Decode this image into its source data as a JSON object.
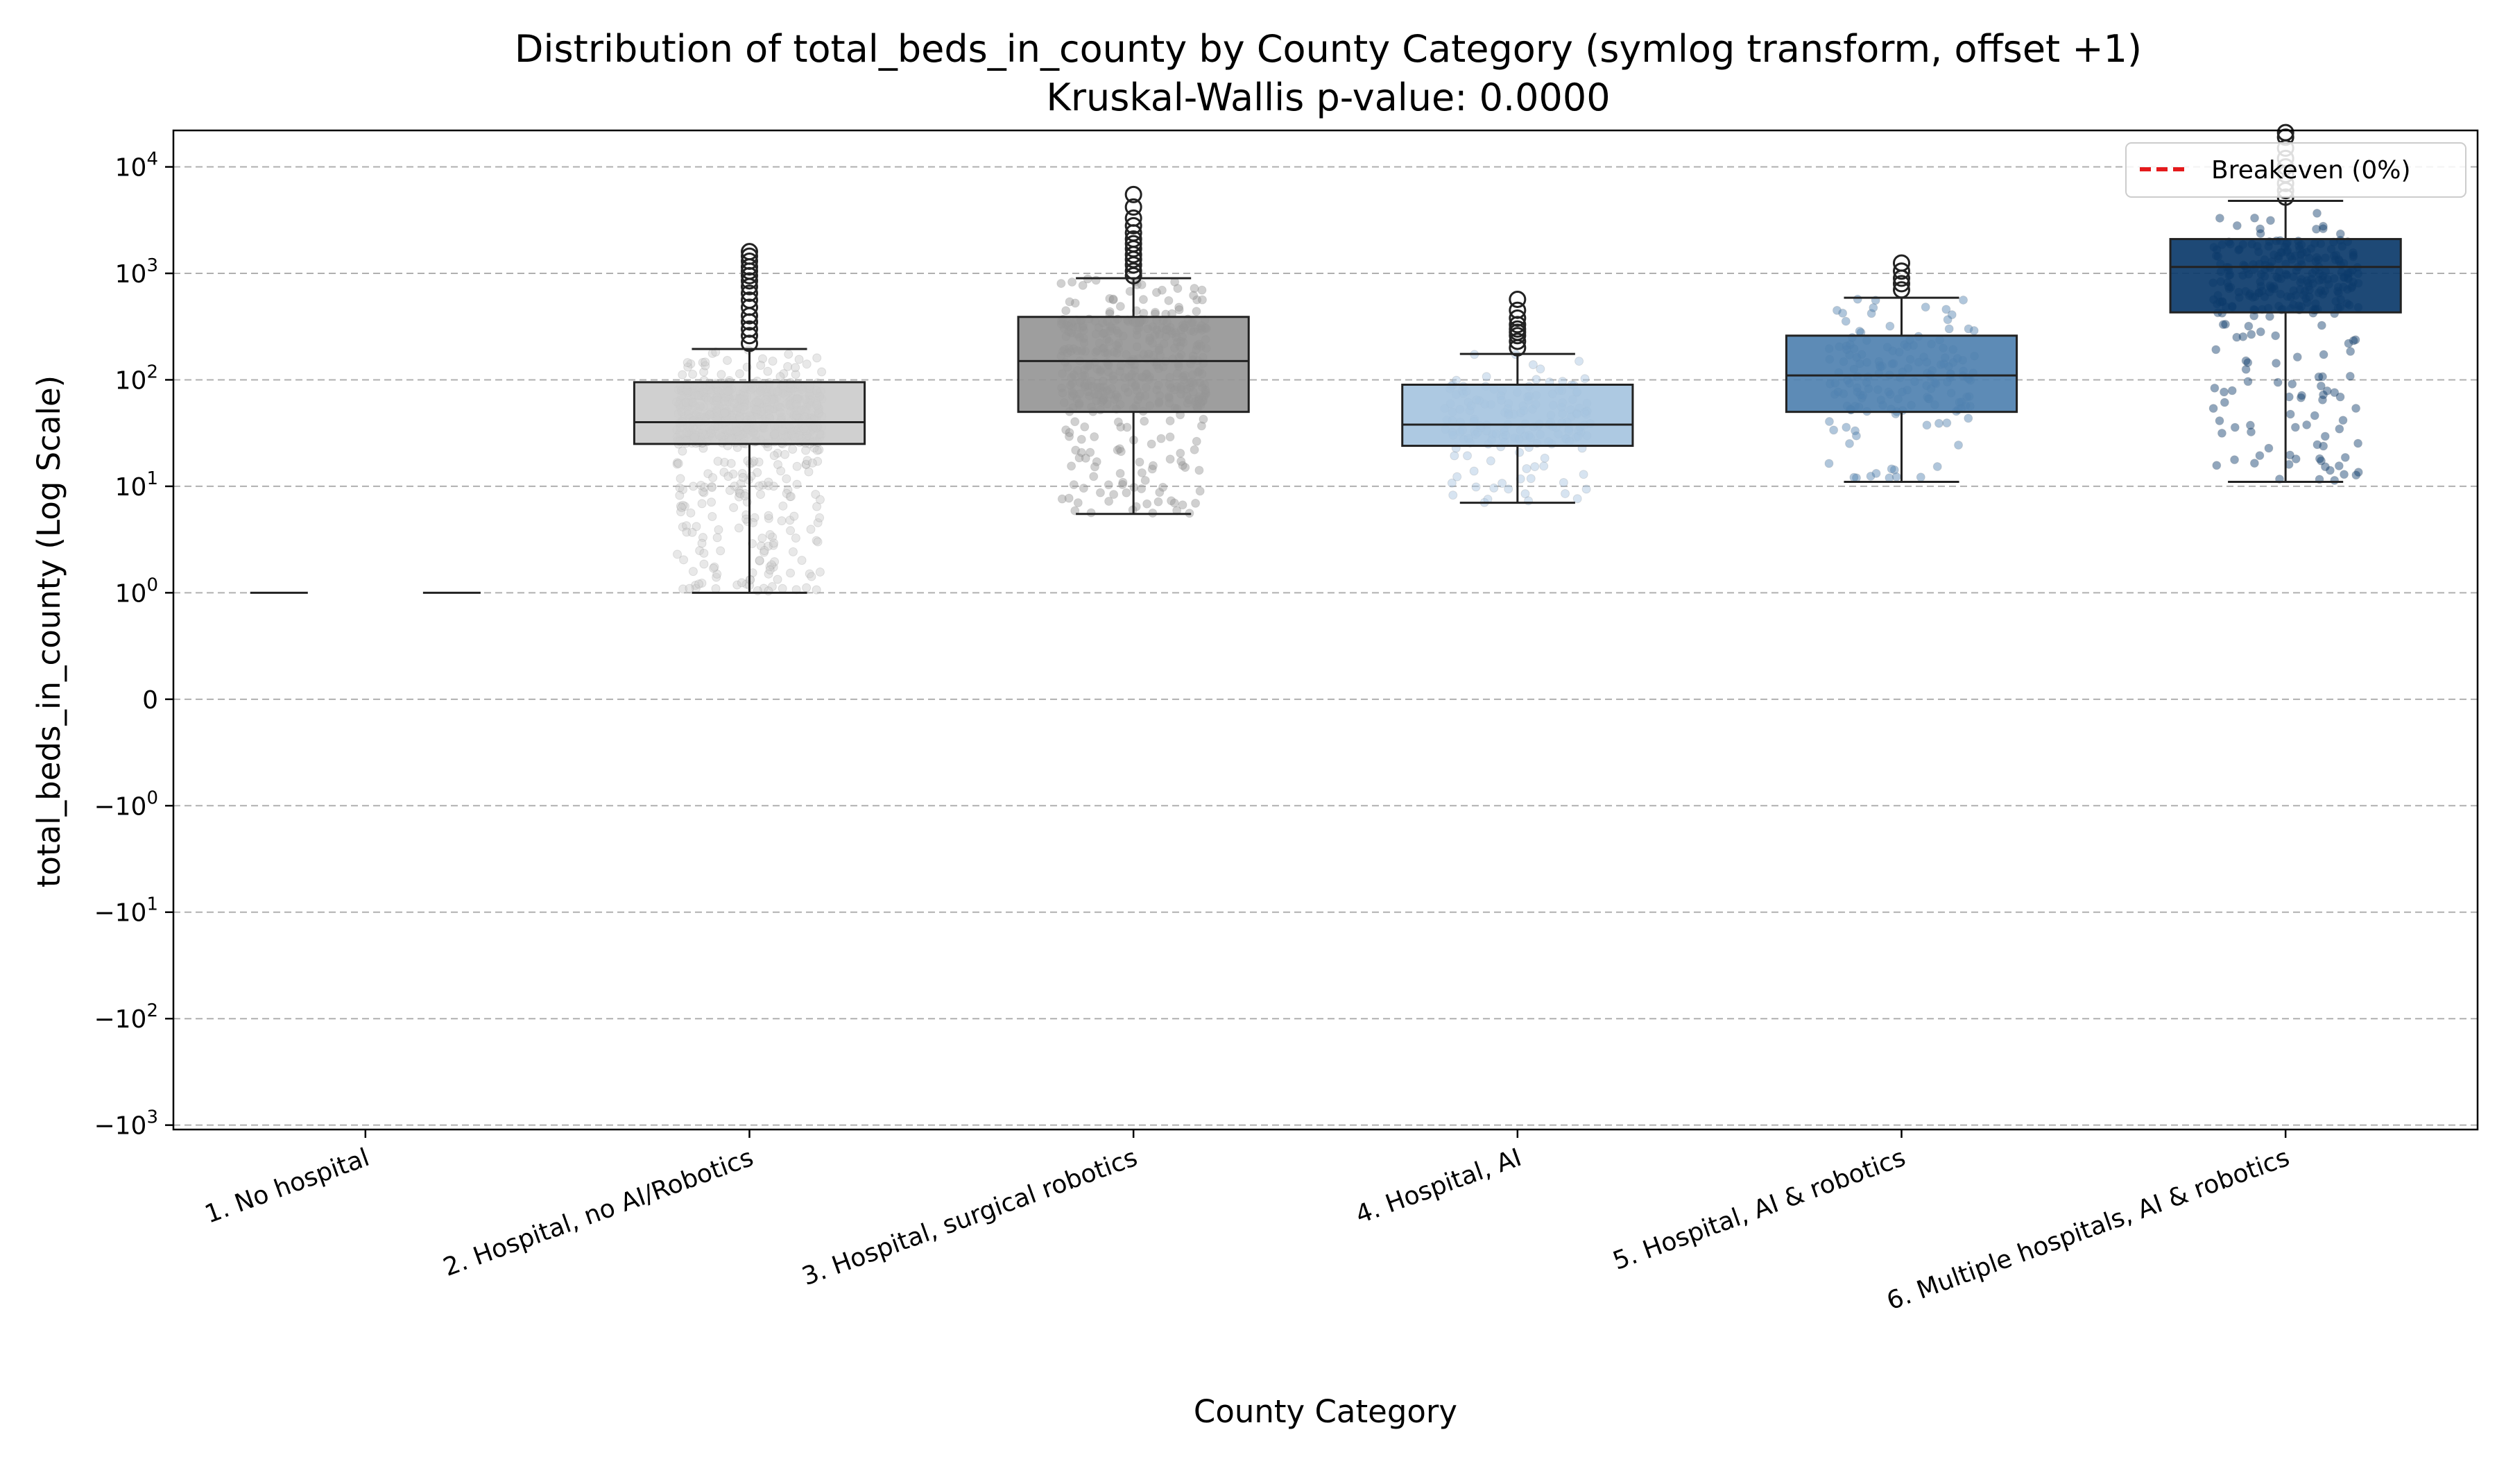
{
  "chart_data": {
    "type": "box",
    "title": "Distribution of total_beds_in_county by County Category (symlog transform, offset +1)",
    "subtitle": "Kruskal-Wallis p-value: 0.0000",
    "xlabel": "County Category",
    "ylabel": "total_beds_in_county (Log Scale)",
    "yscale": "symlog",
    "yticks": [
      {
        "value": 10000,
        "base": "10",
        "exp": "4"
      },
      {
        "value": 1000,
        "base": "10",
        "exp": "3"
      },
      {
        "value": 100,
        "base": "10",
        "exp": "2"
      },
      {
        "value": 10,
        "base": "10",
        "exp": "1"
      },
      {
        "value": 1,
        "base": "10",
        "exp": "0"
      },
      {
        "value": 0,
        "base": "0",
        "exp": ""
      },
      {
        "value": -1,
        "base": "−10",
        "exp": "0"
      },
      {
        "value": -10,
        "base": "−10",
        "exp": "1"
      },
      {
        "value": -100,
        "base": "−10",
        "exp": "2"
      },
      {
        "value": -1000,
        "base": "−10",
        "exp": "3"
      }
    ],
    "ylim": [
      -1100,
      22000
    ],
    "grid": "y-dashed",
    "legend": {
      "position": "upper-right",
      "entries": [
        {
          "label": "Breakeven (0%)",
          "color": "#e41a1c",
          "style": "dashed"
        }
      ]
    },
    "categories": [
      "1. No hospital",
      "2. Hospital, no AI/Robotics",
      "3. Hospital, surgical robotics",
      "4. Hospital, AI",
      "5. Hospital, AI & robotics",
      "6. Multiple hospitals, AI & robotics"
    ],
    "boxes": [
      {
        "category": "1. No hospital",
        "color": "#ffffff",
        "q1": 1,
        "median": 1,
        "q3": 1,
        "whisker_low": 1,
        "whisker_high": 1,
        "outliers": []
      },
      {
        "category": "2. Hospital, no AI/Robotics",
        "color": "#cccccc",
        "q1": 25,
        "median": 40,
        "q3": 95,
        "whisker_low": 1,
        "whisker_high": 195,
        "outliers": [
          220,
          260,
          300,
          350,
          400,
          480,
          560,
          650,
          750,
          850,
          950,
          1050,
          1150,
          1300,
          1450,
          1600
        ]
      },
      {
        "category": "3. Hospital, surgical robotics",
        "color": "#969696",
        "q1": 50,
        "median": 150,
        "q3": 390,
        "whisker_low": 5.5,
        "whisker_high": 900,
        "outliers": [
          950,
          1050,
          1200,
          1350,
          1500,
          1700,
          1900,
          2100,
          2400,
          2800,
          3300,
          4200,
          5500
        ]
      },
      {
        "category": "4. Hospital, AI",
        "color": "#a6c4e0",
        "q1": 24,
        "median": 38,
        "q3": 90,
        "whisker_low": 7,
        "whisker_high": 175,
        "outliers": [
          200,
          230,
          260,
          280,
          300,
          330,
          380,
          450,
          570
        ]
      },
      {
        "category": "5. Hospital, AI & robotics",
        "color": "#4f81b0",
        "q1": 50,
        "median": 110,
        "q3": 260,
        "whisker_low": 11,
        "whisker_high": 590,
        "outliers": [
          700,
          800,
          900,
          1050,
          1250
        ]
      },
      {
        "category": "6. Multiple hospitals, AI & robotics",
        "color": "#0b3a6a",
        "q1": 430,
        "median": 1150,
        "q3": 2100,
        "whisker_low": 11,
        "whisker_high": 4800,
        "outliers": [
          5200,
          6000,
          7000,
          8500,
          10000,
          12000,
          15000,
          19000,
          21000
        ]
      }
    ]
  }
}
